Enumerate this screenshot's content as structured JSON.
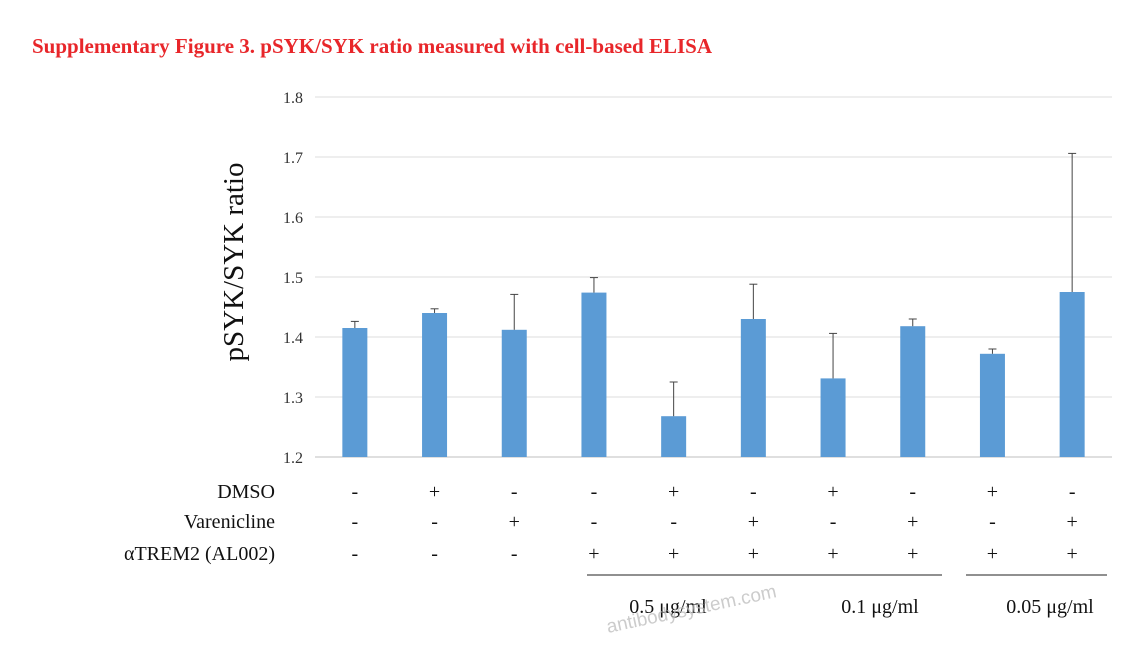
{
  "watermark": "antibodysystem.com",
  "chart_data": {
    "type": "bar",
    "title": "Supplementary Figure 3. pSYK/SYK ratio measured with cell-based ELISA",
    "ylabel": "pSYK/SYK  ratio",
    "xlabel": "",
    "ylim": [
      1.2,
      1.8
    ],
    "yticks": [
      "1.2",
      "1.3",
      "1.4",
      "1.5",
      "1.6",
      "1.7",
      "1.8"
    ],
    "grid": true,
    "values": [
      1.415,
      1.44,
      1.412,
      1.474,
      1.268,
      1.43,
      1.331,
      1.418,
      1.372,
      1.475
    ],
    "error_upper": [
      1.426,
      1.447,
      1.471,
      1.499,
      1.325,
      1.488,
      1.406,
      1.43,
      1.38,
      1.706
    ],
    "conditions": {
      "rows": [
        {
          "label": "DMSO",
          "signs": [
            "-",
            "+",
            "-",
            "-",
            "+",
            "-",
            "+",
            "-",
            "+",
            "-"
          ]
        },
        {
          "label": "Varenicline",
          "signs": [
            "-",
            "-",
            "+",
            "-",
            "-",
            "+",
            "-",
            "+",
            "-",
            "+"
          ]
        },
        {
          "label": "αTREM2 (AL002)",
          "signs": [
            "-",
            "-",
            "-",
            "+",
            "+",
            "+",
            "+",
            "+",
            "+",
            "+"
          ]
        }
      ]
    },
    "groups": [
      "0.5 μg/ml",
      "0.1 μg/ml",
      "0.05 μg/ml"
    ]
  }
}
